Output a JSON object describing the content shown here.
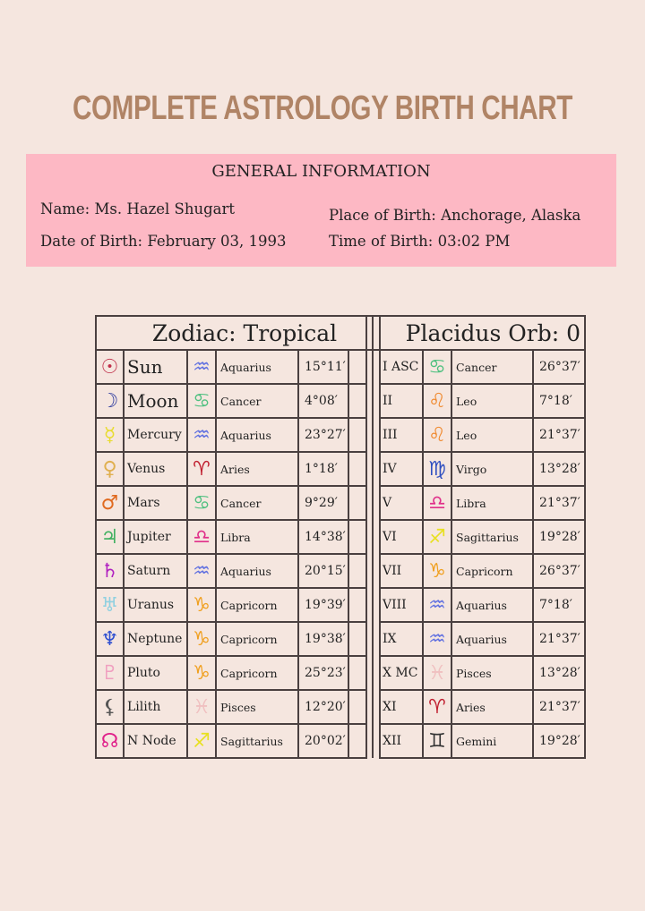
{
  "title": "COMPLETE ASTROLOGY BIRTH CHART",
  "general": {
    "heading": "GENERAL INFORMATION",
    "name": "Name: Ms. Hazel Shugart",
    "date_of_birth": "Date of Birth: February 03, 1993",
    "place_of_birth": "Place of Birth: Anchorage, Alaska",
    "time_of_birth": "Time of Birth: 03:02 PM"
  },
  "planets_header": "Zodiac: Tropical",
  "houses_header": "Placidus Orb: 0",
  "planets": [
    {
      "glyph": "☉",
      "color": "#c0304a",
      "name": "Sun",
      "sign_glyph": "♒",
      "sign_color": "#6070e0",
      "sign": "Aquarius",
      "degree": "15°11′"
    },
    {
      "glyph": "☽",
      "color": "#2c3a9e",
      "name": "Moon",
      "sign_glyph": "♋",
      "sign_color": "#50c080",
      "sign": "Cancer",
      "degree": "4°08′"
    },
    {
      "glyph": "☿",
      "color": "#e8dc30",
      "name": "Mercury",
      "sign_glyph": "♒",
      "sign_color": "#6070e0",
      "sign": "Aquarius",
      "degree": "23°27′"
    },
    {
      "glyph": "♀",
      "color": "#e0b050",
      "name": "Venus",
      "sign_glyph": "♈",
      "sign_color": "#c02030",
      "sign": "Aries",
      "degree": "1°18′"
    },
    {
      "glyph": "♂",
      "color": "#e06a20",
      "name": "Mars",
      "sign_glyph": "♋",
      "sign_color": "#50c080",
      "sign": "Cancer",
      "degree": "9°29′"
    },
    {
      "glyph": "♃",
      "color": "#40b060",
      "name": "Jupiter",
      "sign_glyph": "♎",
      "sign_color": "#e0308a",
      "sign": "Libra",
      "degree": "14°38′"
    },
    {
      "glyph": "♄",
      "color": "#b020c0",
      "name": "Saturn",
      "sign_glyph": "♒",
      "sign_color": "#6070e0",
      "sign": "Aquarius",
      "degree": "20°15′"
    },
    {
      "glyph": "♅",
      "color": "#90d0e0",
      "name": "Uranus",
      "sign_glyph": "♑",
      "sign_color": "#f0a020",
      "sign": "Capricorn",
      "degree": "19°39′"
    },
    {
      "glyph": "♆",
      "color": "#3050d0",
      "name": "Neptune",
      "sign_glyph": "♑",
      "sign_color": "#f0a020",
      "sign": "Capricorn",
      "degree": "19°38′"
    },
    {
      "glyph": "♇",
      "color": "#f0a0c0",
      "name": "Pluto",
      "sign_glyph": "♑",
      "sign_color": "#f0a020",
      "sign": "Capricorn",
      "degree": "25°23′"
    },
    {
      "glyph": "⚸",
      "color": "#555555",
      "name": "Lilith",
      "sign_glyph": "♓",
      "sign_color": "#f0c0c0",
      "sign": "Pisces",
      "degree": "12°20′"
    },
    {
      "glyph": "☊",
      "color": "#e0208a",
      "name": "N Node",
      "sign_glyph": "♐",
      "sign_color": "#e8e020",
      "sign": "Sagittarius",
      "degree": "20°02′"
    }
  ],
  "houses": [
    {
      "house": "I ASC",
      "sign_glyph": "♋",
      "sign_color": "#50c080",
      "sign": "Cancer",
      "degree": "26°37′"
    },
    {
      "house": "II",
      "sign_glyph": "♌",
      "sign_color": "#f08a30",
      "sign": "Leo",
      "degree": "7°18′"
    },
    {
      "house": "III",
      "sign_glyph": "♌",
      "sign_color": "#f08a30",
      "sign": "Leo",
      "degree": "21°37′"
    },
    {
      "house": "IV",
      "sign_glyph": "♍",
      "sign_color": "#3050c0",
      "sign": "Virgo",
      "degree": "13°28′"
    },
    {
      "house": "V",
      "sign_glyph": "♎",
      "sign_color": "#e0308a",
      "sign": "Libra",
      "degree": "21°37′"
    },
    {
      "house": "VI",
      "sign_glyph": "♐",
      "sign_color": "#e8e020",
      "sign": "Sagittarius",
      "degree": "19°28′"
    },
    {
      "house": "VII",
      "sign_glyph": "♑",
      "sign_color": "#f0a020",
      "sign": "Capricorn",
      "degree": "26°37′"
    },
    {
      "house": "VIII",
      "sign_glyph": "♒",
      "sign_color": "#6070e0",
      "sign": "Aquarius",
      "degree": "7°18′"
    },
    {
      "house": "IX",
      "sign_glyph": "♒",
      "sign_color": "#6070e0",
      "sign": "Aquarius",
      "degree": "21°37′"
    },
    {
      "house": "X MC",
      "sign_glyph": "♓",
      "sign_color": "#f0c0c0",
      "sign": "Pisces",
      "degree": "13°28′"
    },
    {
      "house": "XI",
      "sign_glyph": "♈",
      "sign_color": "#c02030",
      "sign": "Aries",
      "degree": "21°37′"
    },
    {
      "house": "XII",
      "sign_glyph": "♊",
      "sign_color": "#333333",
      "sign": "Gemini",
      "degree": "19°28′"
    }
  ]
}
